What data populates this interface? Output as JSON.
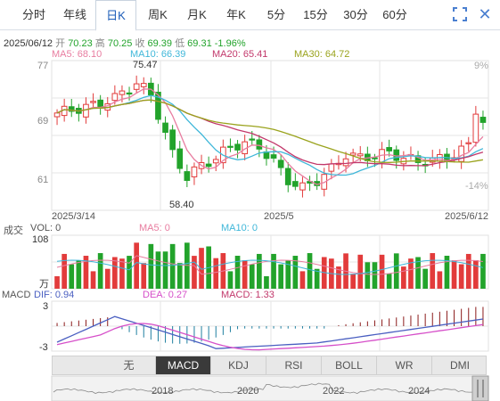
{
  "tabs": [
    {
      "label": "分时"
    },
    {
      "label": "年线"
    },
    {
      "label": "日K"
    },
    {
      "label": "周K"
    },
    {
      "label": "月K"
    },
    {
      "label": "年K"
    },
    {
      "label": "5分"
    },
    {
      "label": "15分"
    },
    {
      "label": "30分"
    },
    {
      "label": "60分"
    }
  ],
  "active_tab": "日K",
  "info": {
    "date": "2025/06/12",
    "open_label": "开",
    "open": "70.23",
    "high_label": "高",
    "high": "70.25",
    "close_label": "收",
    "close": "69.39",
    "low_label": "低",
    "low": "69.31",
    "change": "-1.96%"
  },
  "ma": {
    "ma5": "MA5: 68.10",
    "ma10": "MA10: 66.39",
    "ma20": "MA20: 65.41",
    "ma30": "MA30: 64.72"
  },
  "price_axis": {
    "top": "77",
    "mid": "69",
    "bottom": "61",
    "pct_top": "9%",
    "pct_bottom": "-14%"
  },
  "annotations": {
    "high": "75.47",
    "low": "58.40"
  },
  "date_axis": {
    "start": "2025/3/14",
    "mid": "2025/5",
    "end": "2025/6/12"
  },
  "volume": {
    "title": "成交",
    "vol": "VOL: 0",
    "ma5": "MA5: 0",
    "ma10": "MA10: 0",
    "axis_top": "108",
    "axis_unit": "万"
  },
  "macd": {
    "title": "MACD",
    "dif": "DIF: 0.94",
    "dea": "DEA: 0.27",
    "macd": "MACD: 1.33",
    "axis_top": "3",
    "axis_bottom": "-3"
  },
  "indicator_tabs": [
    {
      "label": "无"
    },
    {
      "label": "MACD"
    },
    {
      "label": "KDJ"
    },
    {
      "label": "RSI"
    },
    {
      "label": "BOLL"
    },
    {
      "label": "WR"
    },
    {
      "label": "DMI"
    }
  ],
  "active_indicator": "MACD",
  "nav_arrows": {
    "up": "▲",
    "down": "▼"
  },
  "overview_years": [
    "2018",
    "2020",
    "2022",
    "2024"
  ],
  "colors": {
    "up": "#e23b3b",
    "down": "#22a32b",
    "ma5": "#e87da0",
    "ma10": "#3fb7d9",
    "ma20": "#c2386b",
    "ma30": "#9aa31d",
    "dif": "#4a5fc1",
    "dea": "#d64fc9",
    "accent": "#1a5bb8"
  },
  "icons": {
    "fullscreen": "fullscreen-icon",
    "close": "close-icon"
  }
}
